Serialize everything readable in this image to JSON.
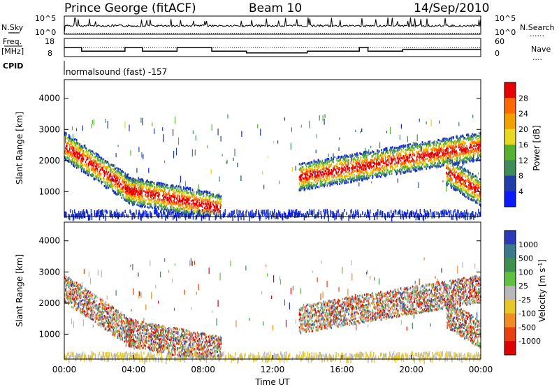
{
  "header": {
    "station": "Prince George (fitACF)",
    "beam": "Beam 10",
    "date": "14/Sep/2010"
  },
  "top_labels": {
    "nsky": "N.Sky",
    "freq_line1": "Freq.",
    "freq_line2": "[MHz]",
    "cpid": "CPID",
    "nsearch": "N.Search",
    "nave": "Nave",
    "dotted_marker": "......",
    "dotted_marker_short": "....",
    "cp_name": "normalsound (fast) -157"
  },
  "side_ticks": {
    "nsky_left": [
      "10^5",
      "10^0"
    ],
    "nsearch_right": [
      "10^5",
      "10^0"
    ],
    "freq_left": [
      "18",
      "8"
    ],
    "nave_right": [
      "60",
      "0"
    ]
  },
  "axes": {
    "xlabel": "Time UT",
    "ylabel": "Slant Range [km]",
    "power_label": "Power [dB]",
    "velocity_label": "Velocity [m s",
    "velocity_label_sup": "-1",
    "velocity_label_end": "]"
  },
  "colors": {
    "power_scale": [
      "#0a1cff",
      "#1f3ea8",
      "#3d8c5a",
      "#58b030",
      "#e8d820",
      "#f0a000",
      "#ff6800",
      "#e80000"
    ],
    "velocity_scale": [
      "#2a3ab8",
      "#3a7a8a",
      "#3f8f4f",
      "#60c040",
      "#b8b8b8",
      "#e8c828",
      "#f08c20",
      "#e84010",
      "#e00000"
    ]
  },
  "chart_data": [
    {
      "type": "line",
      "panel": "noise",
      "title": "",
      "series": [
        {
          "name": "N.Sky",
          "style": "solid",
          "scale": "log",
          "ylim": [
            1,
            100000
          ]
        },
        {
          "name": "N.Search",
          "style": "dotted",
          "scale": "log",
          "ylim": [
            1,
            100000
          ]
        }
      ]
    },
    {
      "type": "line",
      "panel": "frequency",
      "x": [
        "00:00",
        "00:30",
        "01:00",
        "01:30",
        "02:00",
        "02:30",
        "03:00",
        "03:30",
        "04:00",
        "04:30",
        "05:00",
        "05:30",
        "06:00",
        "06:30",
        "07:00",
        "07:30",
        "08:00",
        "08:30",
        "09:00",
        "09:30",
        "10:00",
        "10:30",
        "11:00",
        "11:30",
        "12:00",
        "12:30",
        "13:00",
        "13:30",
        "14:00",
        "14:30",
        "15:00",
        "15:30",
        "16:00",
        "16:30",
        "17:00",
        "17:30",
        "18:00",
        "18:30",
        "19:00",
        "19:30",
        "20:00",
        "20:30",
        "21:00",
        "21:30",
        "22:00",
        "22:30",
        "23:00",
        "23:30",
        "24:00"
      ],
      "series": [
        {
          "name": "Freq.",
          "ylim": [
            8,
            18
          ],
          "values": [
            13,
            13,
            11,
            11,
            11,
            11,
            11,
            13,
            13,
            11,
            11,
            11,
            11,
            13,
            13,
            13,
            13,
            11,
            11,
            11,
            11,
            10,
            10,
            10,
            10,
            10,
            10,
            10,
            11,
            11,
            11,
            11,
            11,
            11,
            13,
            11,
            11,
            11,
            11,
            12,
            12,
            12,
            12,
            12,
            12,
            12,
            12,
            12,
            12
          ]
        },
        {
          "name": "Nave",
          "ylim": [
            0,
            60
          ],
          "values": [
            30,
            30,
            30,
            30,
            30,
            30,
            30,
            30,
            30,
            30,
            30,
            30,
            30,
            30,
            30,
            30,
            30,
            30,
            30,
            30,
            30,
            30,
            30,
            30,
            30,
            30,
            30,
            30,
            30,
            30,
            30,
            30,
            30,
            30,
            30,
            30,
            30,
            30,
            30,
            30,
            30,
            30,
            30,
            30,
            30,
            30,
            30,
            30,
            30
          ]
        }
      ]
    },
    {
      "type": "heatmap",
      "panel": "power",
      "xlabel": "Time UT",
      "ylabel": "Slant Range [km]",
      "xlim": [
        "00:00",
        "24:00"
      ],
      "ylim": [
        200,
        4600
      ],
      "yticks": [
        1000,
        2000,
        3000,
        4000
      ],
      "colorbar": {
        "label": "Power [dB]",
        "ticks": [
          4,
          8,
          12,
          16,
          20,
          24,
          28
        ],
        "range": [
          0,
          32
        ]
      },
      "echo_bands": [
        {
          "t0": 0.0,
          "t1": 4.0,
          "r_start": 2500,
          "r_end": 1000,
          "peak_dB": 30
        },
        {
          "t0": 3.5,
          "t1": 9.0,
          "r_start": 1100,
          "r_end": 500,
          "peak_dB": 20
        },
        {
          "t0": 13.5,
          "t1": 24.0,
          "r_start": 1500,
          "r_end": 2500,
          "peak_dB": 30
        },
        {
          "t0": 22.0,
          "t1": 24.0,
          "r_start": 1700,
          "r_end": 1000,
          "peak_dB": 30
        }
      ]
    },
    {
      "type": "heatmap",
      "panel": "velocity",
      "xlabel": "Time UT",
      "ylabel": "Slant Range [km]",
      "xlim": [
        "00:00",
        "24:00"
      ],
      "ylim": [
        200,
        4600
      ],
      "yticks": [
        1000,
        2000,
        3000,
        4000
      ],
      "colorbar": {
        "label": "Velocity [m s-1]",
        "ticks": [
          1000,
          500,
          100,
          25,
          -25,
          -100,
          -500,
          -1000
        ]
      },
      "xticks": [
        "00:00",
        "04:00",
        "08:00",
        "12:00",
        "16:00",
        "20:00",
        "00:00"
      ]
    }
  ]
}
